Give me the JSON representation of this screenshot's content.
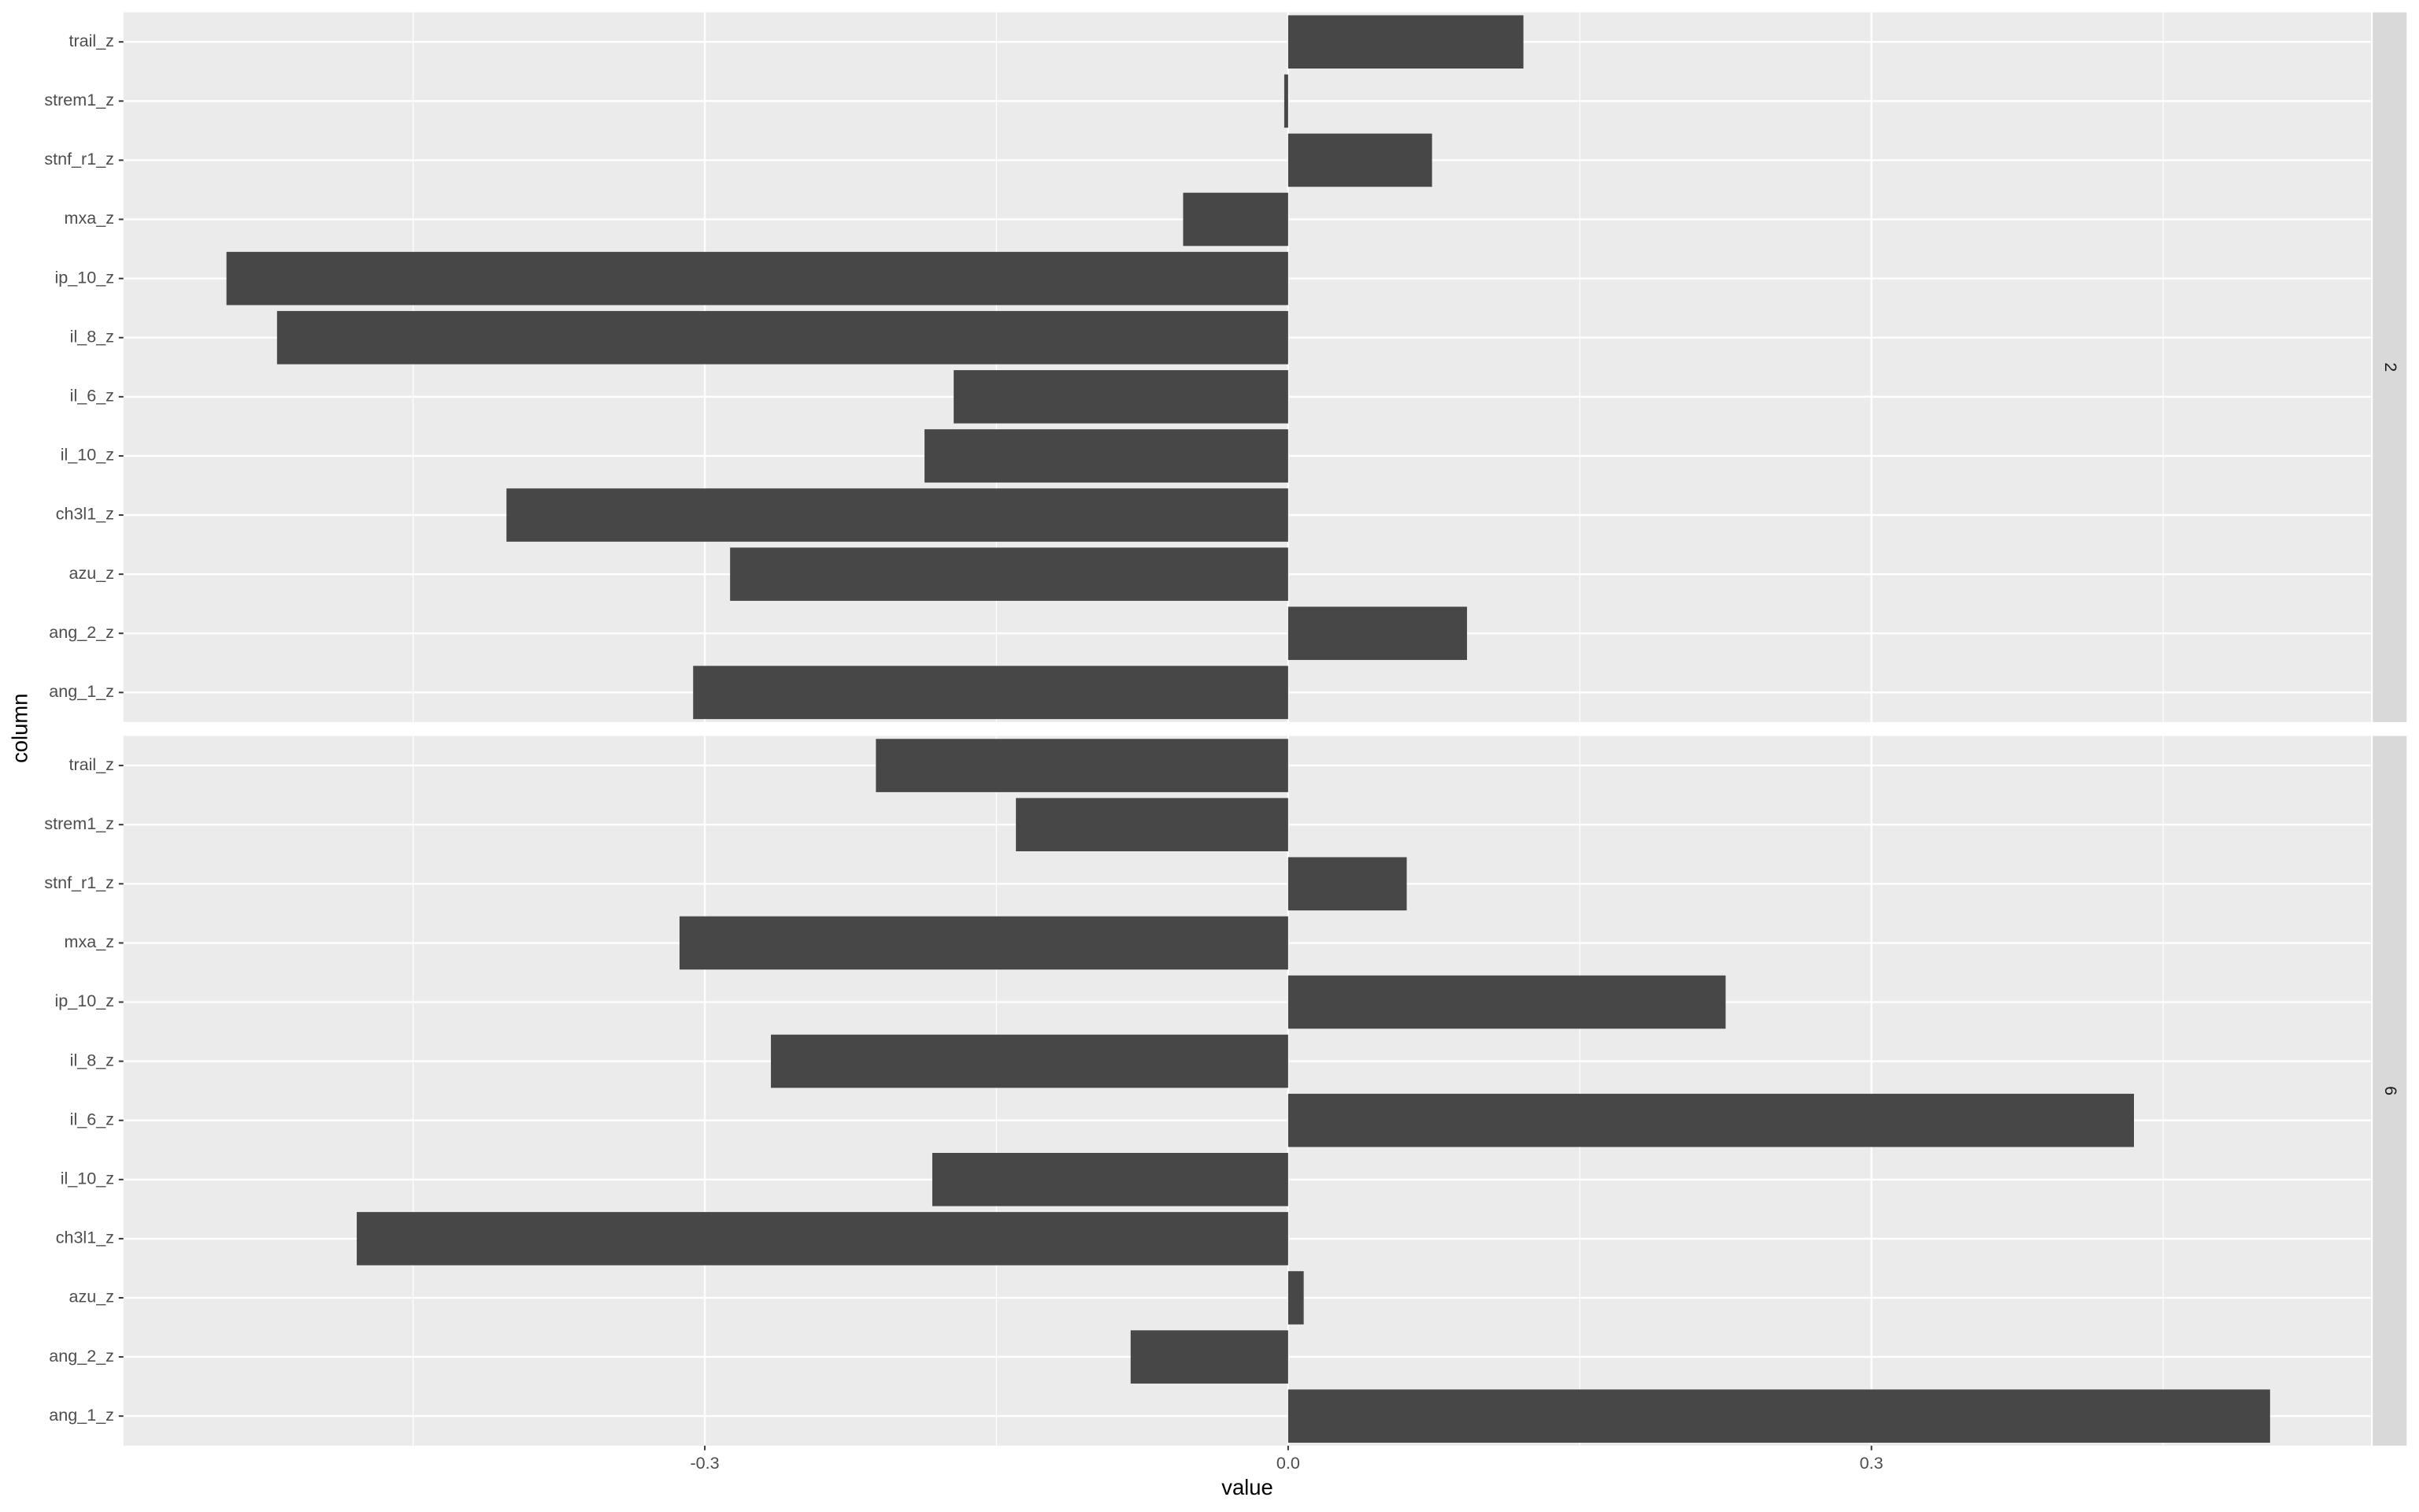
{
  "chart_data": [
    {
      "type": "bar",
      "orientation": "horizontal",
      "facet": "2",
      "y_label": "column",
      "categories": [
        "ang_1_z",
        "ang_2_z",
        "azu_z",
        "ch3l1_z",
        "il_10_z",
        "il_6_z",
        "il_8_z",
        "ip_10_z",
        "mxa_z",
        "stnf_r1_z",
        "strem1_z",
        "trail_z"
      ],
      "values": [
        -0.306,
        0.092,
        -0.287,
        -0.402,
        -0.187,
        -0.172,
        -0.52,
        -0.546,
        -0.054,
        0.074,
        -0.002,
        0.121
      ],
      "color": "#474747",
      "xlim": [
        -0.599,
        0.557
      ],
      "xticks": [
        -0.3,
        0,
        0.3
      ],
      "xminor": [
        -0.45,
        -0.15,
        0.15,
        0.45
      ],
      "grid": true
    },
    {
      "type": "bar",
      "orientation": "horizontal",
      "facet": "6",
      "x_label": "value",
      "categories": [
        "ang_1_z",
        "ang_2_z",
        "azu_z",
        "ch3l1_z",
        "il_10_z",
        "il_6_z",
        "il_8_z",
        "ip_10_z",
        "mxa_z",
        "stnf_r1_z",
        "strem1_z",
        "trail_z"
      ],
      "values": [
        0.505,
        -0.081,
        0.008,
        -0.479,
        -0.183,
        0.435,
        -0.266,
        0.225,
        -0.313,
        0.061,
        -0.14,
        -0.212
      ],
      "color": "#474747",
      "xlim": [
        -0.599,
        0.557
      ],
      "xticks": [
        {
          "value": -0.3,
          "label": "-0.3"
        },
        {
          "value": 0,
          "label": "0.0"
        },
        {
          "value": 0.3,
          "label": "0.3"
        }
      ],
      "xminor": [
        -0.45,
        -0.15,
        0.15,
        0.45
      ],
      "grid": true
    }
  ]
}
